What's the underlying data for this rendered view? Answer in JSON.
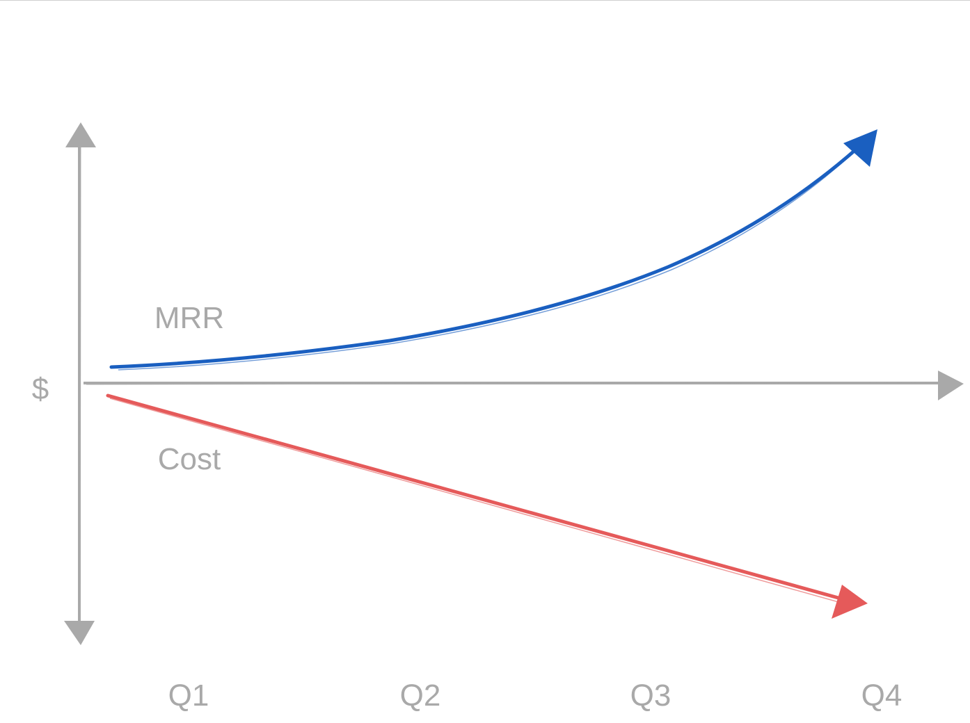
{
  "diagram": {
    "y_axis_label": "$",
    "x_ticks": [
      "Q1",
      "Q2",
      "Q3",
      "Q4"
    ],
    "series": [
      {
        "key": "mrr",
        "label": "MRR",
        "trend": "accelerating growth",
        "color": "#1a5fc0"
      },
      {
        "key": "cost",
        "label": "Cost",
        "trend": "linear decrease",
        "color": "#e55a5a"
      }
    ],
    "axis_color": "#a9a9a9",
    "text_color": "#a9a9a9",
    "style": "hand-drawn sketch"
  }
}
